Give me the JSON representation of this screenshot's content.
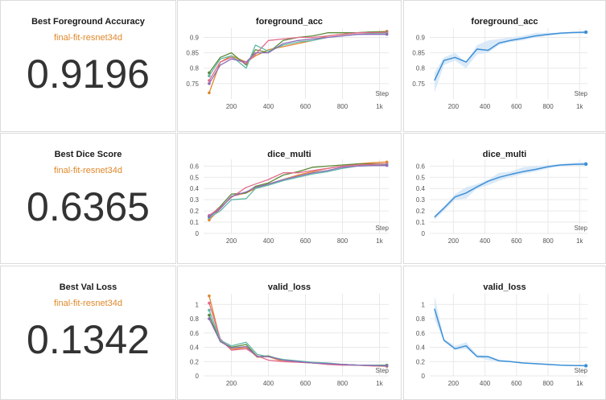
{
  "rows": [
    {
      "scalar": {
        "title": "Best Foreground Accuracy",
        "run": "final-fit-resnet34d",
        "value": "0.9196"
      },
      "chart_title": "foreground_acc",
      "xlabel": "Step"
    },
    {
      "scalar": {
        "title": "Best Dice Score",
        "run": "final-fit-resnet34d",
        "value": "0.6365"
      },
      "chart_title": "dice_multi",
      "xlabel": "Step"
    },
    {
      "scalar": {
        "title": "Best Val Loss",
        "run": "final-fit-resnet34d",
        "value": "0.1342"
      },
      "chart_title": "valid_loss",
      "xlabel": "Step"
    }
  ],
  "colors": {
    "run_accent": "#e0882a",
    "mean_line": "#3d8fd6",
    "band": "#cfe3f6",
    "grid": "#e9e9e9",
    "runs": [
      "#e0882a",
      "#5b8a3a",
      "#e36b8c",
      "#5fb8a8",
      "#8c6bb8",
      "#b8a86b"
    ]
  },
  "chart_data": [
    {
      "type": "line",
      "title": "foreground_acc",
      "xlabel": "Step",
      "xlim": [
        50,
        1050
      ],
      "ylim": [
        0.7,
        0.93
      ],
      "xticks": [
        200,
        400,
        600,
        800,
        1000
      ],
      "xtick_labels": [
        "200",
        "400",
        "600",
        "800",
        "1k"
      ],
      "yticks": [
        0.75,
        0.8,
        0.85,
        0.9
      ],
      "ytick_labels": [
        "0.75",
        "0.8",
        "0.85",
        "0.9"
      ],
      "grid": true,
      "series": [
        {
          "x": [
            80,
            140,
            200,
            280,
            330,
            400,
            480,
            560,
            640,
            720,
            800,
            880,
            960,
            1040
          ],
          "values": [
            0.72,
            0.82,
            0.84,
            0.82,
            0.84,
            0.86,
            0.87,
            0.88,
            0.89,
            0.905,
            0.91,
            0.915,
            0.918,
            0.9196
          ]
        },
        {
          "x": [
            80,
            140,
            200,
            280,
            330,
            400,
            480,
            560,
            640,
            720,
            800,
            880,
            960,
            1040
          ],
          "values": [
            0.785,
            0.835,
            0.85,
            0.81,
            0.86,
            0.85,
            0.89,
            0.9,
            0.905,
            0.915,
            0.915,
            0.915,
            0.918,
            0.918
          ]
        },
        {
          "x": [
            80,
            140,
            200,
            280,
            330,
            400,
            480,
            560,
            640,
            720,
            800,
            880,
            960,
            1040
          ],
          "values": [
            0.76,
            0.82,
            0.835,
            0.815,
            0.845,
            0.89,
            0.895,
            0.9,
            0.9,
            0.905,
            0.91,
            0.915,
            0.915,
            0.916
          ]
        },
        {
          "x": [
            80,
            140,
            200,
            280,
            330,
            400,
            480,
            560,
            640,
            720,
            800,
            880,
            960,
            1040
          ],
          "values": [
            0.775,
            0.83,
            0.84,
            0.8,
            0.875,
            0.855,
            0.875,
            0.885,
            0.89,
            0.9,
            0.905,
            0.91,
            0.912,
            0.912
          ]
        },
        {
          "x": [
            80,
            140,
            200,
            280,
            330,
            400,
            480,
            560,
            640,
            720,
            800,
            880,
            960,
            1040
          ],
          "values": [
            0.75,
            0.81,
            0.83,
            0.82,
            0.85,
            0.85,
            0.88,
            0.89,
            0.895,
            0.9,
            0.905,
            0.91,
            0.91,
            0.91
          ]
        }
      ]
    },
    {
      "type": "line",
      "title": "foreground_acc",
      "xlabel": "Step",
      "xlim": [
        50,
        1050
      ],
      "ylim": [
        0.7,
        0.93
      ],
      "xticks": [
        200,
        400,
        600,
        800,
        1000
      ],
      "xtick_labels": [
        "200",
        "400",
        "600",
        "800",
        "1k"
      ],
      "yticks": [
        0.75,
        0.8,
        0.85,
        0.9
      ],
      "ytick_labels": [
        "0.75",
        "0.8",
        "0.85",
        "0.9"
      ],
      "grid": true,
      "mean": {
        "x": [
          80,
          140,
          210,
          280,
          350,
          420,
          490,
          560,
          640,
          720,
          800,
          880,
          960,
          1040
        ],
        "values": [
          0.76,
          0.825,
          0.835,
          0.82,
          0.862,
          0.858,
          0.882,
          0.89,
          0.897,
          0.905,
          0.91,
          0.914,
          0.916,
          0.917
        ]
      },
      "band_low": [
        0.72,
        0.81,
        0.825,
        0.8,
        0.845,
        0.85,
        0.875,
        0.885,
        0.89,
        0.9,
        0.905,
        0.91,
        0.912,
        0.912
      ],
      "band_high": [
        0.785,
        0.835,
        0.85,
        0.82,
        0.875,
        0.89,
        0.895,
        0.9,
        0.905,
        0.915,
        0.915,
        0.915,
        0.918,
        0.9196
      ]
    },
    {
      "type": "line",
      "title": "dice_multi",
      "xlabel": "Step",
      "xlim": [
        50,
        1050
      ],
      "ylim": [
        0,
        0.66
      ],
      "xticks": [
        200,
        400,
        600,
        800,
        1000
      ],
      "xtick_labels": [
        "200",
        "400",
        "600",
        "800",
        "1k"
      ],
      "yticks": [
        0,
        0.1,
        0.2,
        0.3,
        0.4,
        0.5,
        0.6
      ],
      "ytick_labels": [
        "0",
        "0.1",
        "0.2",
        "0.3",
        "0.4",
        "0.5",
        "0.6"
      ],
      "grid": true,
      "series": [
        {
          "x": [
            80,
            140,
            200,
            280,
            330,
            400,
            480,
            560,
            640,
            720,
            800,
            880,
            960,
            1040
          ],
          "values": [
            0.12,
            0.22,
            0.33,
            0.36,
            0.4,
            0.44,
            0.48,
            0.52,
            0.55,
            0.58,
            0.6,
            0.62,
            0.63,
            0.6365
          ]
        },
        {
          "x": [
            80,
            140,
            200,
            280,
            330,
            400,
            480,
            560,
            640,
            720,
            800,
            880,
            960,
            1040
          ],
          "values": [
            0.15,
            0.24,
            0.35,
            0.36,
            0.42,
            0.45,
            0.52,
            0.55,
            0.59,
            0.6,
            0.61,
            0.62,
            0.62,
            0.62
          ]
        },
        {
          "x": [
            80,
            140,
            200,
            280,
            330,
            400,
            480,
            560,
            640,
            720,
            800,
            880,
            960,
            1040
          ],
          "values": [
            0.16,
            0.23,
            0.32,
            0.41,
            0.44,
            0.48,
            0.54,
            0.54,
            0.56,
            0.58,
            0.6,
            0.61,
            0.615,
            0.62
          ]
        },
        {
          "x": [
            80,
            140,
            200,
            280,
            330,
            400,
            480,
            560,
            640,
            720,
            800,
            880,
            960,
            1040
          ],
          "values": [
            0.14,
            0.2,
            0.3,
            0.31,
            0.4,
            0.43,
            0.47,
            0.5,
            0.53,
            0.55,
            0.58,
            0.6,
            0.605,
            0.61
          ]
        },
        {
          "x": [
            80,
            140,
            200,
            280,
            330,
            400,
            480,
            560,
            640,
            720,
            800,
            880,
            960,
            1040
          ],
          "values": [
            0.15,
            0.22,
            0.33,
            0.37,
            0.41,
            0.44,
            0.48,
            0.51,
            0.54,
            0.56,
            0.59,
            0.6,
            0.605,
            0.605
          ]
        }
      ]
    },
    {
      "type": "line",
      "title": "dice_multi",
      "xlabel": "Step",
      "xlim": [
        50,
        1050
      ],
      "ylim": [
        0,
        0.66
      ],
      "xticks": [
        200,
        400,
        600,
        800,
        1000
      ],
      "xtick_labels": [
        "200",
        "400",
        "600",
        "800",
        "1k"
      ],
      "yticks": [
        0,
        0.1,
        0.2,
        0.3,
        0.4,
        0.5,
        0.6
      ],
      "ytick_labels": [
        "0",
        "0.1",
        "0.2",
        "0.3",
        "0.4",
        "0.5",
        "0.6"
      ],
      "grid": true,
      "mean": {
        "x": [
          80,
          140,
          210,
          280,
          350,
          420,
          490,
          560,
          640,
          720,
          800,
          880,
          960,
          1040
        ],
        "values": [
          0.145,
          0.225,
          0.325,
          0.36,
          0.415,
          0.465,
          0.5,
          0.525,
          0.55,
          0.57,
          0.595,
          0.61,
          0.615,
          0.618
        ]
      },
      "band_low": [
        0.12,
        0.2,
        0.3,
        0.31,
        0.4,
        0.43,
        0.47,
        0.5,
        0.53,
        0.55,
        0.58,
        0.6,
        0.605,
        0.605
      ],
      "band_high": [
        0.16,
        0.24,
        0.35,
        0.41,
        0.44,
        0.48,
        0.54,
        0.55,
        0.59,
        0.6,
        0.61,
        0.62,
        0.63,
        0.6365
      ]
    },
    {
      "type": "line",
      "title": "valid_loss",
      "xlabel": "Step",
      "xlim": [
        50,
        1050
      ],
      "ylim": [
        0,
        1.15
      ],
      "xticks": [
        200,
        400,
        600,
        800,
        1000
      ],
      "xtick_labels": [
        "200",
        "400",
        "600",
        "800",
        "1k"
      ],
      "yticks": [
        0,
        0.2,
        0.4,
        0.6,
        0.8,
        1
      ],
      "ytick_labels": [
        "0",
        "0.2",
        "0.4",
        "0.6",
        "0.8",
        "1"
      ],
      "grid": true,
      "series": [
        {
          "x": [
            80,
            140,
            200,
            280,
            340,
            400,
            480,
            560,
            640,
            720,
            800,
            880,
            960,
            1040
          ],
          "values": [
            1.12,
            0.5,
            0.37,
            0.4,
            0.26,
            0.27,
            0.2,
            0.2,
            0.18,
            0.17,
            0.16,
            0.15,
            0.14,
            0.1342
          ]
        },
        {
          "x": [
            80,
            140,
            200,
            280,
            340,
            400,
            480,
            560,
            640,
            720,
            800,
            880,
            960,
            1040
          ],
          "values": [
            0.85,
            0.48,
            0.4,
            0.44,
            0.27,
            0.28,
            0.22,
            0.2,
            0.18,
            0.17,
            0.16,
            0.15,
            0.15,
            0.15
          ]
        },
        {
          "x": [
            80,
            140,
            200,
            280,
            340,
            400,
            480,
            560,
            640,
            720,
            800,
            880,
            960,
            1040
          ],
          "values": [
            1.02,
            0.52,
            0.36,
            0.38,
            0.28,
            0.22,
            0.2,
            0.19,
            0.18,
            0.16,
            0.15,
            0.15,
            0.14,
            0.14
          ]
        },
        {
          "x": [
            80,
            140,
            200,
            280,
            340,
            400,
            480,
            560,
            640,
            720,
            800,
            880,
            960,
            1040
          ],
          "values": [
            0.92,
            0.5,
            0.42,
            0.47,
            0.3,
            0.27,
            0.23,
            0.21,
            0.19,
            0.18,
            0.16,
            0.15,
            0.15,
            0.145
          ]
        },
        {
          "x": [
            80,
            140,
            200,
            280,
            340,
            400,
            480,
            560,
            640,
            720,
            800,
            880,
            960,
            1040
          ],
          "values": [
            0.8,
            0.48,
            0.39,
            0.41,
            0.27,
            0.27,
            0.22,
            0.2,
            0.18,
            0.17,
            0.16,
            0.15,
            0.145,
            0.14
          ]
        }
      ]
    },
    {
      "type": "line",
      "title": "valid_loss",
      "xlabel": "Step",
      "xlim": [
        50,
        1050
      ],
      "ylim": [
        0,
        1.15
      ],
      "xticks": [
        200,
        400,
        600,
        800,
        1000
      ],
      "xtick_labels": [
        "200",
        "400",
        "600",
        "800",
        "1k"
      ],
      "yticks": [
        0,
        0.2,
        0.4,
        0.6,
        0.8,
        1
      ],
      "ytick_labels": [
        "0",
        "0.2",
        "0.4",
        "0.6",
        "0.8",
        "1"
      ],
      "grid": true,
      "mean": {
        "x": [
          80,
          140,
          210,
          280,
          350,
          420,
          490,
          560,
          640,
          720,
          800,
          880,
          960,
          1040
        ],
        "values": [
          0.94,
          0.5,
          0.38,
          0.42,
          0.27,
          0.27,
          0.21,
          0.2,
          0.18,
          0.17,
          0.16,
          0.15,
          0.145,
          0.142
        ]
      },
      "band_low": [
        0.8,
        0.48,
        0.36,
        0.38,
        0.26,
        0.22,
        0.2,
        0.19,
        0.18,
        0.16,
        0.15,
        0.15,
        0.14,
        0.1342
      ],
      "band_high": [
        1.12,
        0.52,
        0.42,
        0.47,
        0.3,
        0.28,
        0.23,
        0.21,
        0.19,
        0.18,
        0.16,
        0.15,
        0.15,
        0.15
      ]
    }
  ]
}
